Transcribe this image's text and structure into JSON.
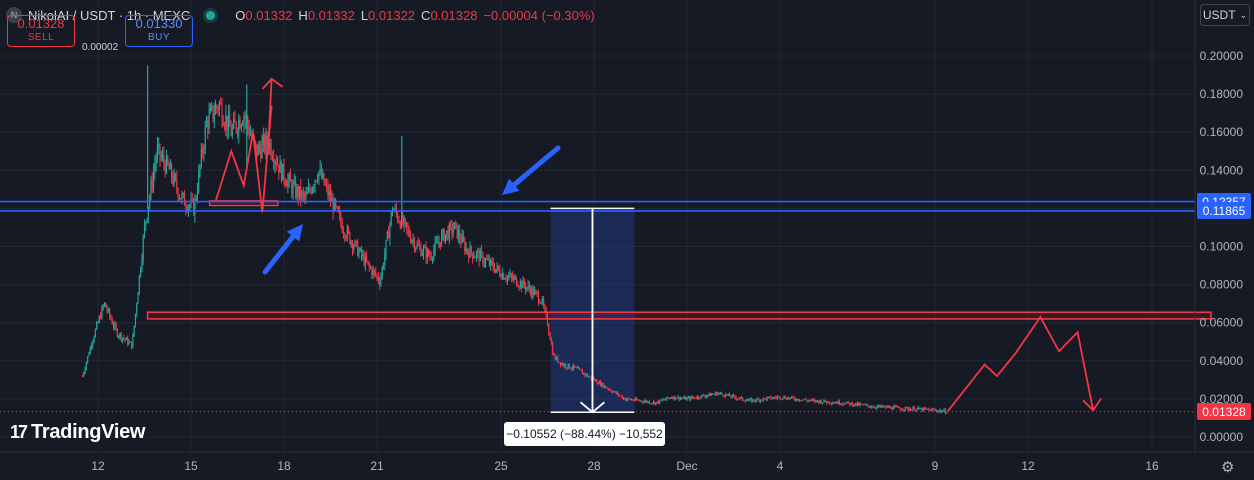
{
  "header": {
    "symbol_badge": "N",
    "symbol": "NikolAI / USDT · 1h · MEXC",
    "open_label": "O",
    "open": "0.01332",
    "high_label": "H",
    "high": "0.01332",
    "low_label": "L",
    "low": "0.01322",
    "close_label": "C",
    "close": "0.01328",
    "change": "−0.00004 (−0.30%)"
  },
  "trade": {
    "sell_price": "0.01328",
    "sell_label": "SELL",
    "spread": "0.00002",
    "buy_price": "0.01330",
    "buy_label": "BUY"
  },
  "currency_button": "USDT",
  "logo": {
    "mark": "17",
    "text": "TradingView"
  },
  "measure": {
    "label": "−0.10552 (−88.44%) −10,552"
  },
  "price_tags": [
    {
      "label": "0.12357",
      "value": 0.12357,
      "color": "#2962ff"
    },
    {
      "label": "0.11865",
      "value": 0.11865,
      "color": "#2962ff"
    },
    {
      "label": "0.01328",
      "value": 0.01328,
      "color": "#f23645"
    }
  ],
  "colors": {
    "up": "#26a69a",
    "down": "#f23645",
    "background": "#161a25",
    "accent": "#2962ff"
  },
  "icons": {
    "settings": "gear-icon",
    "dropdown": "chevron-down-icon"
  },
  "chart_data": {
    "type": "candlestick",
    "y_ticks": [
      "0.20000",
      "0.18000",
      "0.16000",
      "0.14000",
      "0.12000",
      "0.10000",
      "0.08000",
      "0.06000",
      "0.04000",
      "0.02000",
      "0.00000"
    ],
    "y_tick_values": [
      0.2,
      0.18,
      0.16,
      0.14,
      0.12,
      0.1,
      0.08,
      0.06,
      0.04,
      0.02,
      0.0
    ],
    "ylim": [
      0.0,
      0.2
    ],
    "x_ticks": [
      "12",
      "15",
      "18",
      "21",
      "25",
      "28",
      "Dec",
      "4",
      "9",
      "12",
      "16"
    ],
    "x_tick_days": [
      12,
      15,
      18,
      21,
      25,
      28,
      31,
      34,
      39,
      42,
      46
    ],
    "xlim_days": [
      8.9,
      50.7
    ],
    "grid": true,
    "price_path_days": [
      11.5,
      11.8,
      12.2,
      12.6,
      13.1,
      13.5,
      13.9,
      14.3,
      14.7,
      15.1,
      15.5,
      15.9,
      16.3,
      16.7,
      17.1,
      17.5,
      17.9,
      18.3,
      18.7,
      19.1,
      19.5,
      19.9,
      20.3,
      20.7,
      21.1,
      21.5,
      21.9,
      22.3,
      22.7,
      23.1,
      23.5,
      23.9,
      24.3,
      24.7,
      25.1,
      25.5,
      25.9,
      26.3,
      26.5,
      26.7,
      27.0,
      27.4,
      27.8,
      28.2,
      28.6,
      29.0,
      29.5,
      30.0,
      30.5,
      31.0,
      32.0,
      33.0,
      34.0,
      35.0,
      36.0,
      37.0,
      38.0,
      39.0,
      39.4
    ],
    "price_path_values": [
      0.032,
      0.05,
      0.07,
      0.055,
      0.048,
      0.11,
      0.15,
      0.14,
      0.125,
      0.12,
      0.165,
      0.175,
      0.16,
      0.17,
      0.15,
      0.155,
      0.14,
      0.13,
      0.125,
      0.14,
      0.125,
      0.11,
      0.1,
      0.09,
      0.082,
      0.12,
      0.11,
      0.1,
      0.095,
      0.105,
      0.11,
      0.098,
      0.095,
      0.09,
      0.085,
      0.082,
      0.078,
      0.072,
      0.06,
      0.042,
      0.038,
      0.036,
      0.032,
      0.028,
      0.024,
      0.02,
      0.019,
      0.018,
      0.021,
      0.02,
      0.023,
      0.019,
      0.021,
      0.019,
      0.018,
      0.016,
      0.015,
      0.014,
      0.0133
    ],
    "horizontal_lines": [
      0.12357,
      0.11865
    ],
    "red_zone": {
      "start_day": 13.6,
      "end_day": 47.9,
      "top": 0.0655,
      "bottom": 0.062
    },
    "red_small_box": {
      "start_day": 15.6,
      "end_day": 17.8,
      "top": 0.124,
      "bottom": 0.1215
    },
    "measure_box": {
      "start_day": 26.6,
      "end_day": 29.3,
      "top": 0.12,
      "bottom": 0.013
    },
    "projection_path": {
      "days": [
        39.4,
        40.6,
        41.0,
        41.6,
        42.4,
        43.0,
        43.6,
        44.1
      ],
      "values": [
        0.0133,
        0.038,
        0.032,
        0.044,
        0.063,
        0.045,
        0.055,
        0.014
      ]
    }
  }
}
